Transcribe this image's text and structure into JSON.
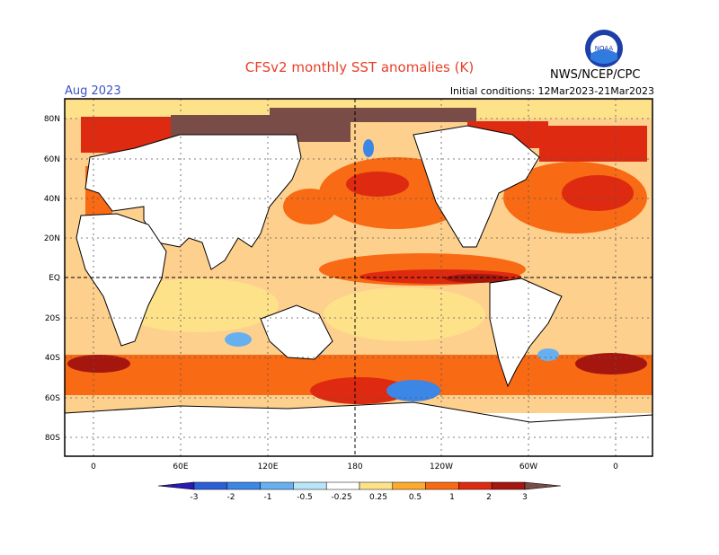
{
  "header": {
    "title": "CFSv2 monthly SST anomalies (K)",
    "month": "Aug 2023",
    "initial_conditions": "Initial conditions: 12Mar2023-21Mar2023",
    "credit": "NWS/NCEP/CPC",
    "logo_text": "NOAA"
  },
  "map": {
    "lat_labels": [
      "80N",
      "60N",
      "40N",
      "20N",
      "EQ",
      "20S",
      "40S",
      "60S",
      "80S"
    ],
    "lon_labels": [
      "0",
      "60E",
      "120E",
      "180",
      "120W",
      "60W",
      "0"
    ],
    "grid": "dotted",
    "reference_lines": [
      "Equator",
      "180"
    ]
  },
  "colorbar": {
    "labels": [
      "-3",
      "-2",
      "-1",
      "-0.5",
      "-0.25",
      "0.25",
      "0.5",
      "1",
      "2",
      "3"
    ],
    "colors": [
      "#2a1ab5",
      "#2a5fd6",
      "#3c86e6",
      "#67b0f0",
      "#b8e6f8",
      "#ffffff",
      "#fde28a",
      "#fdaa2f",
      "#f86a13",
      "#de2a10",
      "#a5170e",
      "#7a4c47"
    ]
  }
}
